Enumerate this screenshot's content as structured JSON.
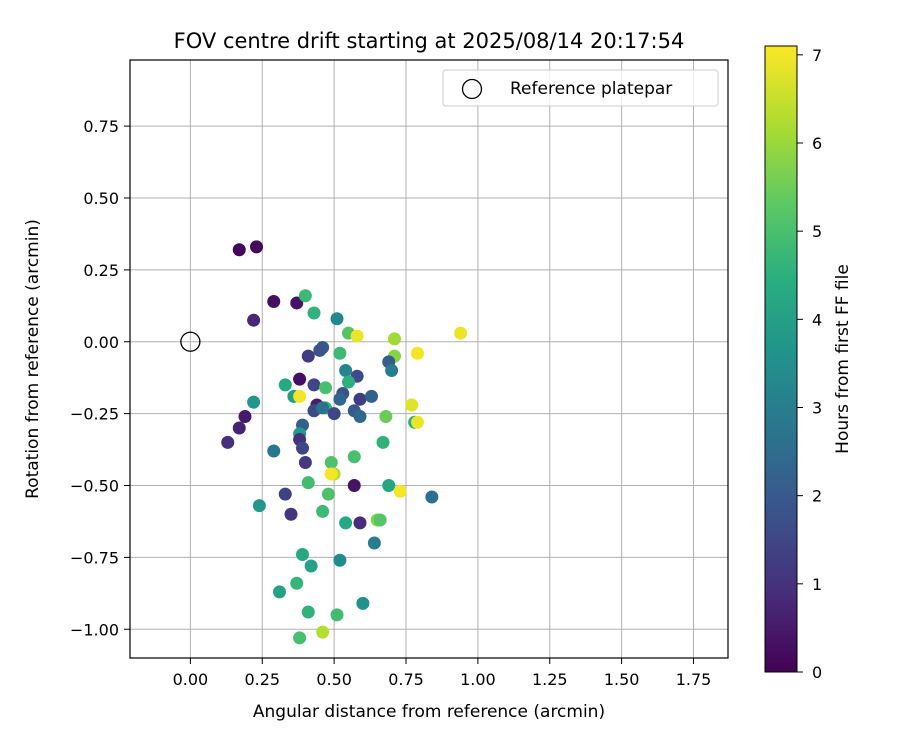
{
  "chart_data": {
    "type": "scatter",
    "title": "FOV centre drift starting at 2025/08/14 20:17:54",
    "xlabel": "Angular distance from reference (arcmin)",
    "ylabel": "Rotation from reference (arcmin)",
    "xlim": [
      -0.21,
      1.87
    ],
    "ylim": [
      -1.1,
      0.98
    ],
    "grid": true,
    "xticks": [
      "0.00",
      "0.25",
      "0.50",
      "0.75",
      "1.00",
      "1.25",
      "1.50",
      "1.75"
    ],
    "yticks": [
      "−1.00",
      "−0.75",
      "−0.50",
      "−0.25",
      "0.00",
      "0.25",
      "0.50",
      "0.75"
    ],
    "legend": {
      "position": "top-right",
      "entries": [
        {
          "label": "Reference platepar",
          "marker": "open-circle"
        }
      ]
    },
    "reference_point": {
      "x": 0.0,
      "y": 0.0
    },
    "colorbar": {
      "label": "Hours from first FF file",
      "range": [
        0,
        7.1
      ],
      "ticks": [
        "0",
        "1",
        "2",
        "3",
        "4",
        "5",
        "6",
        "7"
      ],
      "colormap": "viridis"
    },
    "series": [
      {
        "points": [
          {
            "x": 0.17,
            "y": 0.32,
            "h": 0.1
          },
          {
            "x": 0.23,
            "y": 0.33,
            "h": 0.15
          },
          {
            "x": 0.29,
            "y": 0.14,
            "h": 0.3
          },
          {
            "x": 0.37,
            "y": 0.135,
            "h": 0.4
          },
          {
            "x": 0.22,
            "y": 0.075,
            "h": 0.8
          },
          {
            "x": 0.4,
            "y": 0.16,
            "h": 4.8
          },
          {
            "x": 0.43,
            "y": 0.1,
            "h": 4.6
          },
          {
            "x": 0.51,
            "y": 0.08,
            "h": 3.3
          },
          {
            "x": 0.55,
            "y": 0.03,
            "h": 5.2
          },
          {
            "x": 0.58,
            "y": 0.02,
            "h": 6.9
          },
          {
            "x": 0.71,
            "y": 0.01,
            "h": 6.1
          },
          {
            "x": 0.94,
            "y": 0.03,
            "h": 6.9
          },
          {
            "x": 0.79,
            "y": -0.04,
            "h": 7.0
          },
          {
            "x": 0.71,
            "y": -0.05,
            "h": 5.8
          },
          {
            "x": 0.69,
            "y": -0.07,
            "h": 2.1
          },
          {
            "x": 0.7,
            "y": -0.1,
            "h": 3.0
          },
          {
            "x": 0.46,
            "y": -0.02,
            "h": 2.0
          },
          {
            "x": 0.45,
            "y": -0.03,
            "h": 1.8
          },
          {
            "x": 0.41,
            "y": -0.05,
            "h": 1.3
          },
          {
            "x": 0.52,
            "y": -0.04,
            "h": 4.8
          },
          {
            "x": 0.54,
            "y": -0.1,
            "h": 3.2
          },
          {
            "x": 0.58,
            "y": -0.12,
            "h": 1.6
          },
          {
            "x": 0.55,
            "y": -0.14,
            "h": 4.5
          },
          {
            "x": 0.38,
            "y": -0.13,
            "h": 0.3
          },
          {
            "x": 0.33,
            "y": -0.15,
            "h": 4.3
          },
          {
            "x": 0.43,
            "y": -0.15,
            "h": 1.5
          },
          {
            "x": 0.47,
            "y": -0.16,
            "h": 5.0
          },
          {
            "x": 0.36,
            "y": -0.19,
            "h": 4.0
          },
          {
            "x": 0.38,
            "y": -0.19,
            "h": 7.0
          },
          {
            "x": 0.53,
            "y": -0.18,
            "h": 1.8
          },
          {
            "x": 0.52,
            "y": -0.2,
            "h": 2.3
          },
          {
            "x": 0.59,
            "y": -0.2,
            "h": 1.3
          },
          {
            "x": 0.63,
            "y": -0.19,
            "h": 2.2
          },
          {
            "x": 0.44,
            "y": -0.22,
            "h": 0.6
          },
          {
            "x": 0.43,
            "y": -0.24,
            "h": 1.6
          },
          {
            "x": 0.47,
            "y": -0.23,
            "h": 4.7
          },
          {
            "x": 0.46,
            "y": -0.23,
            "h": 2.7
          },
          {
            "x": 0.5,
            "y": -0.25,
            "h": 1.5
          },
          {
            "x": 0.57,
            "y": -0.24,
            "h": 2.0
          },
          {
            "x": 0.59,
            "y": -0.26,
            "h": 2.4
          },
          {
            "x": 0.77,
            "y": -0.22,
            "h": 6.8
          },
          {
            "x": 0.68,
            "y": -0.26,
            "h": 5.5
          },
          {
            "x": 0.78,
            "y": -0.28,
            "h": 4.5
          },
          {
            "x": 0.79,
            "y": -0.28,
            "h": 6.9
          },
          {
            "x": 0.22,
            "y": -0.21,
            "h": 3.8
          },
          {
            "x": 0.19,
            "y": -0.26,
            "h": 0.5
          },
          {
            "x": 0.17,
            "y": -0.3,
            "h": 0.7
          },
          {
            "x": 0.13,
            "y": -0.35,
            "h": 1.0
          },
          {
            "x": 0.39,
            "y": -0.29,
            "h": 2.2
          },
          {
            "x": 0.38,
            "y": -0.32,
            "h": 3.9
          },
          {
            "x": 0.38,
            "y": -0.34,
            "h": 1.0
          },
          {
            "x": 0.39,
            "y": -0.37,
            "h": 1.5
          },
          {
            "x": 0.4,
            "y": -0.42,
            "h": 1.2
          },
          {
            "x": 0.29,
            "y": -0.38,
            "h": 2.8
          },
          {
            "x": 0.49,
            "y": -0.42,
            "h": 5.1
          },
          {
            "x": 0.57,
            "y": -0.4,
            "h": 5.0
          },
          {
            "x": 0.67,
            "y": -0.35,
            "h": 4.6
          },
          {
            "x": 0.5,
            "y": -0.46,
            "h": 6.3
          },
          {
            "x": 0.49,
            "y": -0.46,
            "h": 7.0
          },
          {
            "x": 0.57,
            "y": -0.5,
            "h": 0.4
          },
          {
            "x": 0.41,
            "y": -0.49,
            "h": 4.9
          },
          {
            "x": 0.48,
            "y": -0.53,
            "h": 5.1
          },
          {
            "x": 0.69,
            "y": -0.5,
            "h": 4.2
          },
          {
            "x": 0.73,
            "y": -0.52,
            "h": 7.0
          },
          {
            "x": 0.84,
            "y": -0.54,
            "h": 2.6
          },
          {
            "x": 0.33,
            "y": -0.53,
            "h": 1.4
          },
          {
            "x": 0.24,
            "y": -0.57,
            "h": 3.8
          },
          {
            "x": 0.35,
            "y": -0.6,
            "h": 1.1
          },
          {
            "x": 0.46,
            "y": -0.59,
            "h": 4.8
          },
          {
            "x": 0.54,
            "y": -0.63,
            "h": 4.3
          },
          {
            "x": 0.59,
            "y": -0.63,
            "h": 0.9
          },
          {
            "x": 0.65,
            "y": -0.62,
            "h": 5.8
          },
          {
            "x": 0.66,
            "y": -0.62,
            "h": 5.2
          },
          {
            "x": 0.64,
            "y": -0.7,
            "h": 3.0
          },
          {
            "x": 0.39,
            "y": -0.74,
            "h": 4.3
          },
          {
            "x": 0.42,
            "y": -0.78,
            "h": 4.1
          },
          {
            "x": 0.52,
            "y": -0.76,
            "h": 3.4
          },
          {
            "x": 0.37,
            "y": -0.84,
            "h": 4.7
          },
          {
            "x": 0.31,
            "y": -0.87,
            "h": 4.1
          },
          {
            "x": 0.41,
            "y": -0.94,
            "h": 4.6
          },
          {
            "x": 0.51,
            "y": -0.95,
            "h": 4.9
          },
          {
            "x": 0.6,
            "y": -0.91,
            "h": 3.6
          },
          {
            "x": 0.38,
            "y": -1.03,
            "h": 5.0
          },
          {
            "x": 0.46,
            "y": -1.01,
            "h": 6.3
          }
        ]
      }
    ]
  }
}
